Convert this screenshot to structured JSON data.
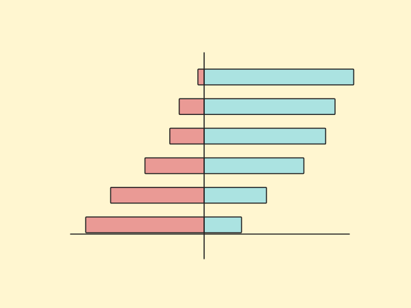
{
  "chart_data": {
    "type": "bar",
    "orientation": "horizontal",
    "stacked": "diverging",
    "title": "",
    "xlabel": "",
    "ylabel": "",
    "grid": false,
    "legend": "none",
    "xlim": [
      -2.0,
      2.45
    ],
    "categories": [
      "",
      "",
      "",
      "",
      "",
      ""
    ],
    "series": [
      {
        "color": "#EA9A95",
        "values": [
          -0.1,
          -0.4,
          -0.55,
          -0.95,
          -1.5,
          -1.9
        ]
      },
      {
        "color": "#ABE3E1",
        "values": [
          2.4,
          2.1,
          1.95,
          1.6,
          1.0,
          0.6
        ]
      }
    ],
    "colors": {
      "background": "#FFF6D0",
      "outline": "#222222",
      "axis": "#222222"
    }
  }
}
